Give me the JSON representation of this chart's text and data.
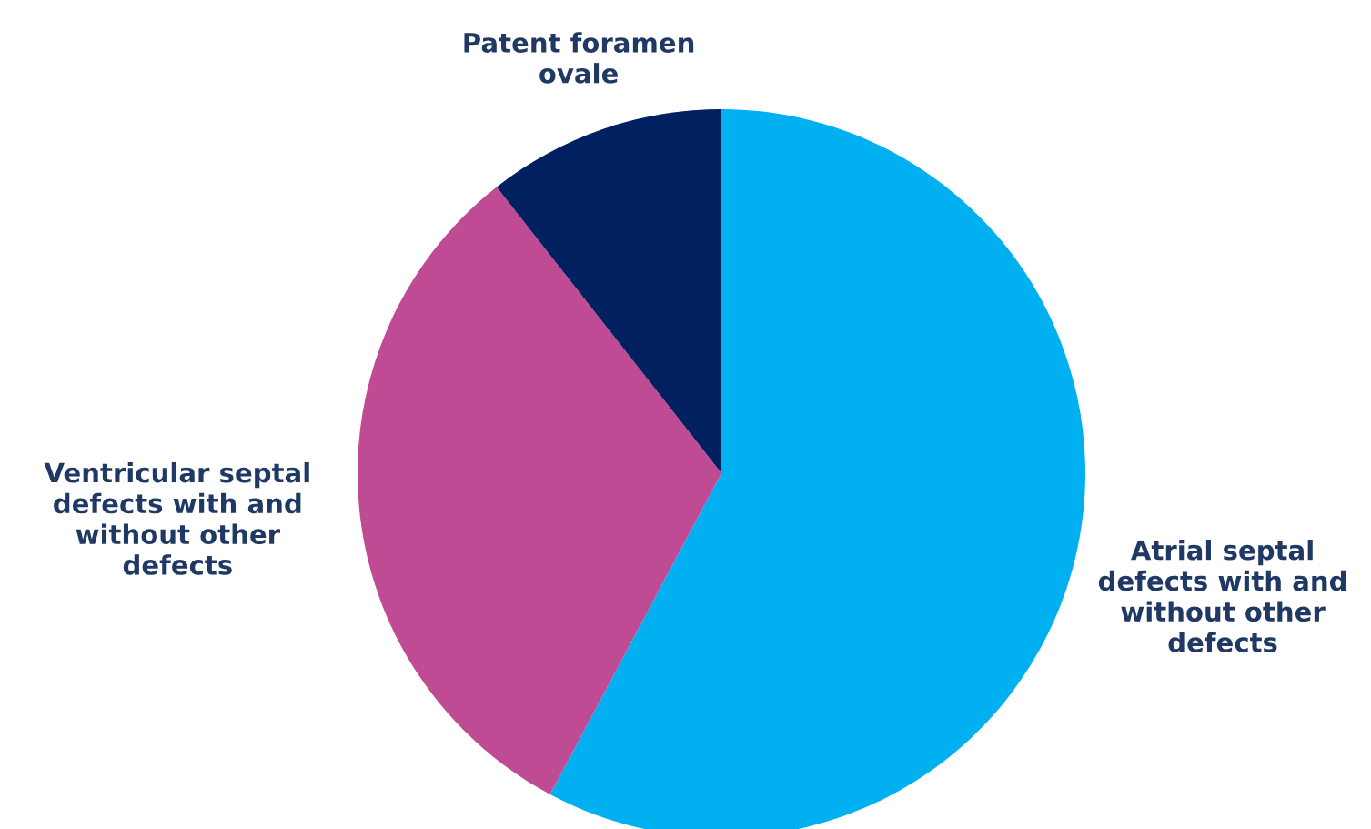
{
  "chart_data": {
    "type": "pie",
    "categories": [
      "Atrial septal defects with and without other defects",
      "Ventricular septal defects with and without other defects",
      "Patent foramen ovale"
    ],
    "values": [
      57.8,
      31.6,
      10.6
    ],
    "colors": [
      "#00b0f0",
      "#be4b93",
      "#002060"
    ],
    "legend": false
  }
}
